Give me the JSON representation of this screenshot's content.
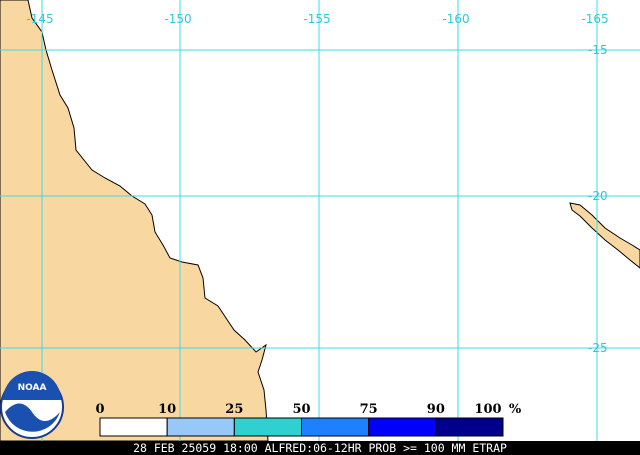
{
  "map": {
    "longitude_labels": [
      "-145",
      "-150",
      "-155",
      "-160",
      "-165"
    ],
    "latitude_labels": [
      "-15",
      "-20",
      "-25"
    ],
    "logo": "NOAA",
    "legend": {
      "labels": [
        "0",
        "10",
        "25",
        "50",
        "75",
        "90",
        "100"
      ],
      "unit": "%",
      "colors": [
        "#ffffff",
        "#98c8f8",
        "#30d0d0",
        "#1e80ff",
        "#0000ff",
        "#00008c"
      ]
    },
    "caption": "28 FEB 25059 18:00 ALFRED:06-12HR PROB >= 100 MM ETRAP"
  }
}
